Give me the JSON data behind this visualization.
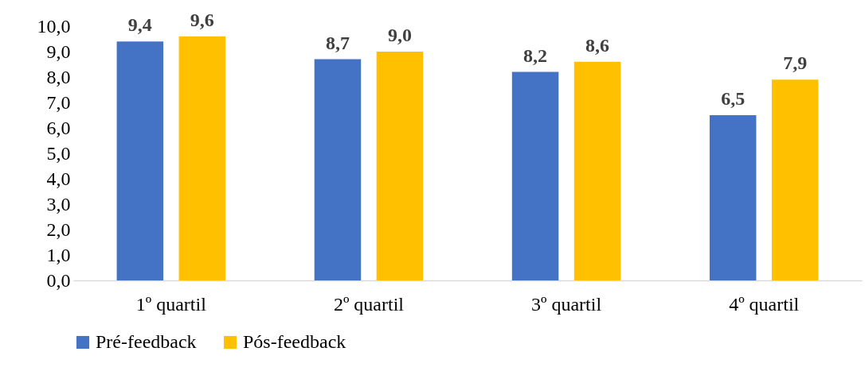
{
  "chart_data": {
    "type": "bar",
    "categories": [
      "1º quartil",
      "2º quartil",
      "3º quartil",
      "4º quartil"
    ],
    "series": [
      {
        "name": "Pré-feedback",
        "color": "#4472c4",
        "values": [
          9.4,
          8.7,
          8.2,
          6.5
        ],
        "value_labels": [
          "9,4",
          "8,7",
          "8,2",
          "6,5"
        ]
      },
      {
        "name": "Pós-feedback",
        "color": "#ffc000",
        "values": [
          9.6,
          9.0,
          8.6,
          7.9
        ],
        "value_labels": [
          "9,6",
          "9,0",
          "8,6",
          "7,9"
        ]
      }
    ],
    "ylim": [
      0,
      10
    ],
    "yticks": [
      {
        "value": 0,
        "label": "0,0"
      },
      {
        "value": 1,
        "label": "1,0"
      },
      {
        "value": 2,
        "label": "2,0"
      },
      {
        "value": 3,
        "label": "3,0"
      },
      {
        "value": 4,
        "label": "4,0"
      },
      {
        "value": 5,
        "label": "5,0"
      },
      {
        "value": 6,
        "label": "6,0"
      },
      {
        "value": 7,
        "label": "7,0"
      },
      {
        "value": 8,
        "label": "8,0"
      },
      {
        "value": 9,
        "label": "9,0"
      },
      {
        "value": 10,
        "label": "10,0"
      }
    ],
    "grid": false,
    "legend": "bottom"
  }
}
